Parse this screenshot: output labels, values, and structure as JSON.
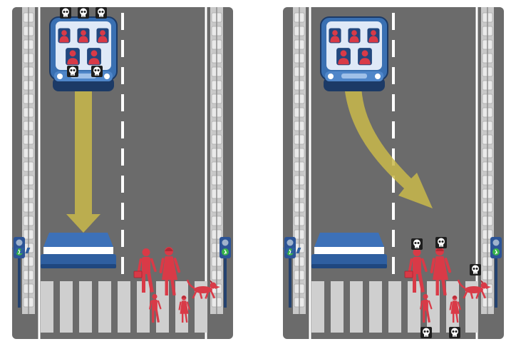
{
  "scenarios": [
    {
      "id": "left",
      "action": "stay",
      "car": {
        "occupants": 5,
        "fatalities": 5
      },
      "pedestrians": {
        "figures": [
          "man",
          "woman",
          "boy",
          "girl",
          "dog"
        ],
        "fatalities": 0
      },
      "signal": "walk"
    },
    {
      "id": "right",
      "action": "swerve",
      "car": {
        "occupants": 5,
        "fatalities": 0
      },
      "pedestrians": {
        "figures": [
          "man",
          "woman",
          "boy",
          "girl",
          "dog"
        ],
        "fatalities": 5
      },
      "signal": "walk"
    }
  ],
  "icons": {
    "death": "skull-icon",
    "signal": "pedestrian-walk-icon",
    "barrier": "concrete-barrier"
  },
  "colors": {
    "road": "#6b6b6b",
    "curb": "#c9c9c9",
    "lane_marking": "#ffffff",
    "person": "#d93a47",
    "car": "#3a70b2",
    "barrier": "#2f5fa0",
    "arrow": "#c9b84a",
    "skull_bg": "#1e1e1e",
    "signal_walk": "#39b54a"
  }
}
